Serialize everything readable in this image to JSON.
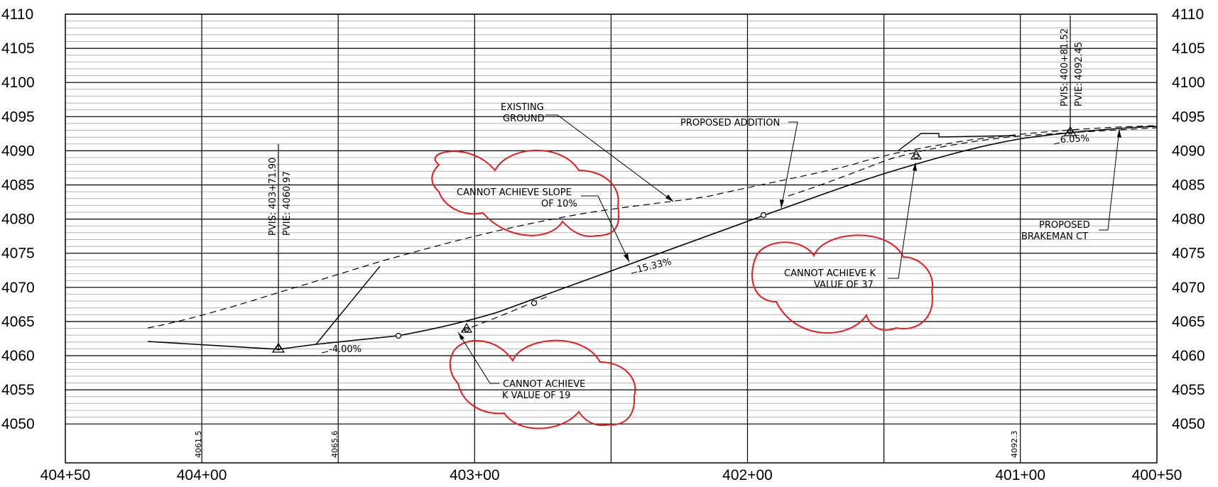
{
  "elevation_ticks": [
    "4110",
    "4105",
    "4100",
    "4095",
    "4090",
    "4085",
    "4080",
    "4075",
    "4070",
    "4065",
    "4060",
    "4055",
    "4050"
  ],
  "station_ticks": [
    "404+50",
    "404+00",
    "403+00",
    "402+00",
    "401+00",
    "400+50"
  ],
  "bottom_elevations": [
    "4061.5",
    "4065.6",
    "4092.3"
  ],
  "labels": {
    "existing_ground_1": "EXISTING",
    "existing_ground_2": "GROUND",
    "proposed_addition": "PROPOSED ADDITION",
    "proposed_brakeman_1": "PROPOSED",
    "proposed_brakeman_2": "BRAKEMAN CT",
    "pvi_left_sta": "PVIS: 403+71.90",
    "pvi_left_elev": "PVIE: 4060.97",
    "pvi_right_sta": "PVIS: 400+81.52",
    "pvi_right_elev": "PVIE: 4092.45",
    "grade_1": "-4.00%",
    "grade_2": "15.33%",
    "grade_3": "6.05%"
  },
  "clouds": {
    "slope_1": "CANNOT ACHIEVE SLOPE",
    "slope_2": "OF 10%",
    "k37_1": "CANNOT ACHIEVE K",
    "k37_2": "VALUE OF 37",
    "k19_1": "CANNOT ACHIEVE",
    "k19_2": "K VALUE OF 19"
  },
  "colors": {
    "markup_red": "#e81c1c",
    "grid_line": "#000000",
    "minor_grid": "#b4b4b4"
  }
}
